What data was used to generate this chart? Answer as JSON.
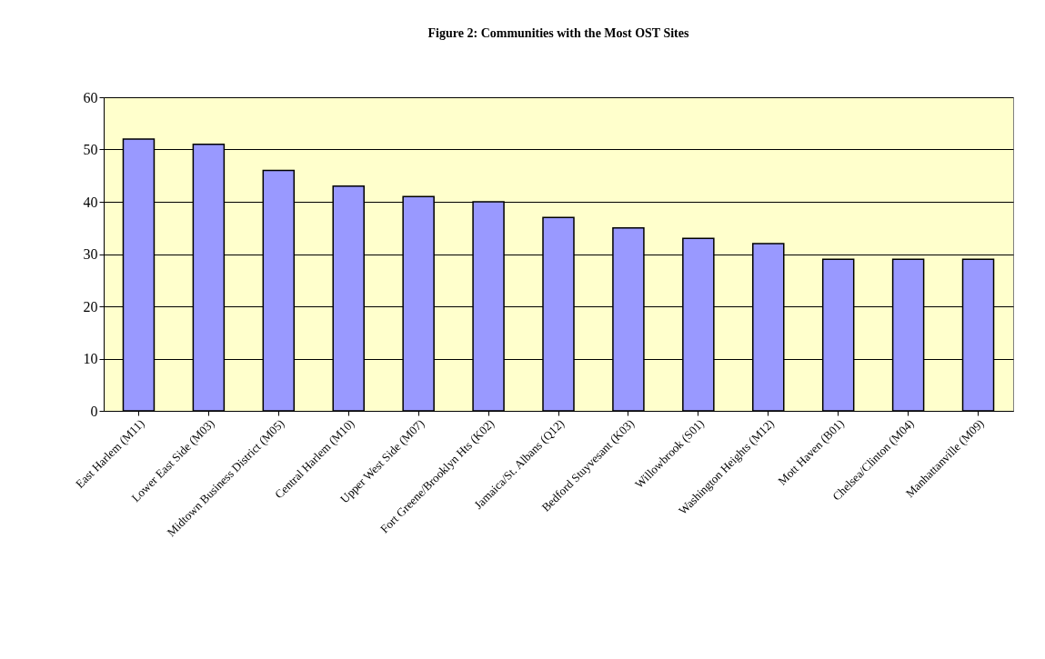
{
  "chart_data": {
    "type": "bar",
    "title": "Figure 2: Communities with the Most OST Sites",
    "categories": [
      "East Harlem (M11)",
      "Lower East Side  (M03)",
      "Midtown Business District (M05)",
      "Central Harlem (M10)",
      "Upper West Side (M07)",
      "Fort Greene/Brooklyn Hts (K02)",
      "Jamaica/St. Albans (Q12)",
      "Bedford Stuyvesant (K03)",
      "Willowbrook (S01)",
      "Washington Heights (M12)",
      "Mott Haven (B01)",
      "Chelsea/Clinton (M04)",
      "Manhattanville (M09)"
    ],
    "values": [
      52,
      51,
      46,
      43,
      41,
      40,
      37,
      35,
      33,
      32,
      29,
      29,
      29
    ],
    "color": "#9999ff",
    "ylim": [
      0,
      60
    ],
    "yticks": [
      0,
      10,
      20,
      30,
      40,
      50,
      60
    ],
    "grid": "y"
  }
}
